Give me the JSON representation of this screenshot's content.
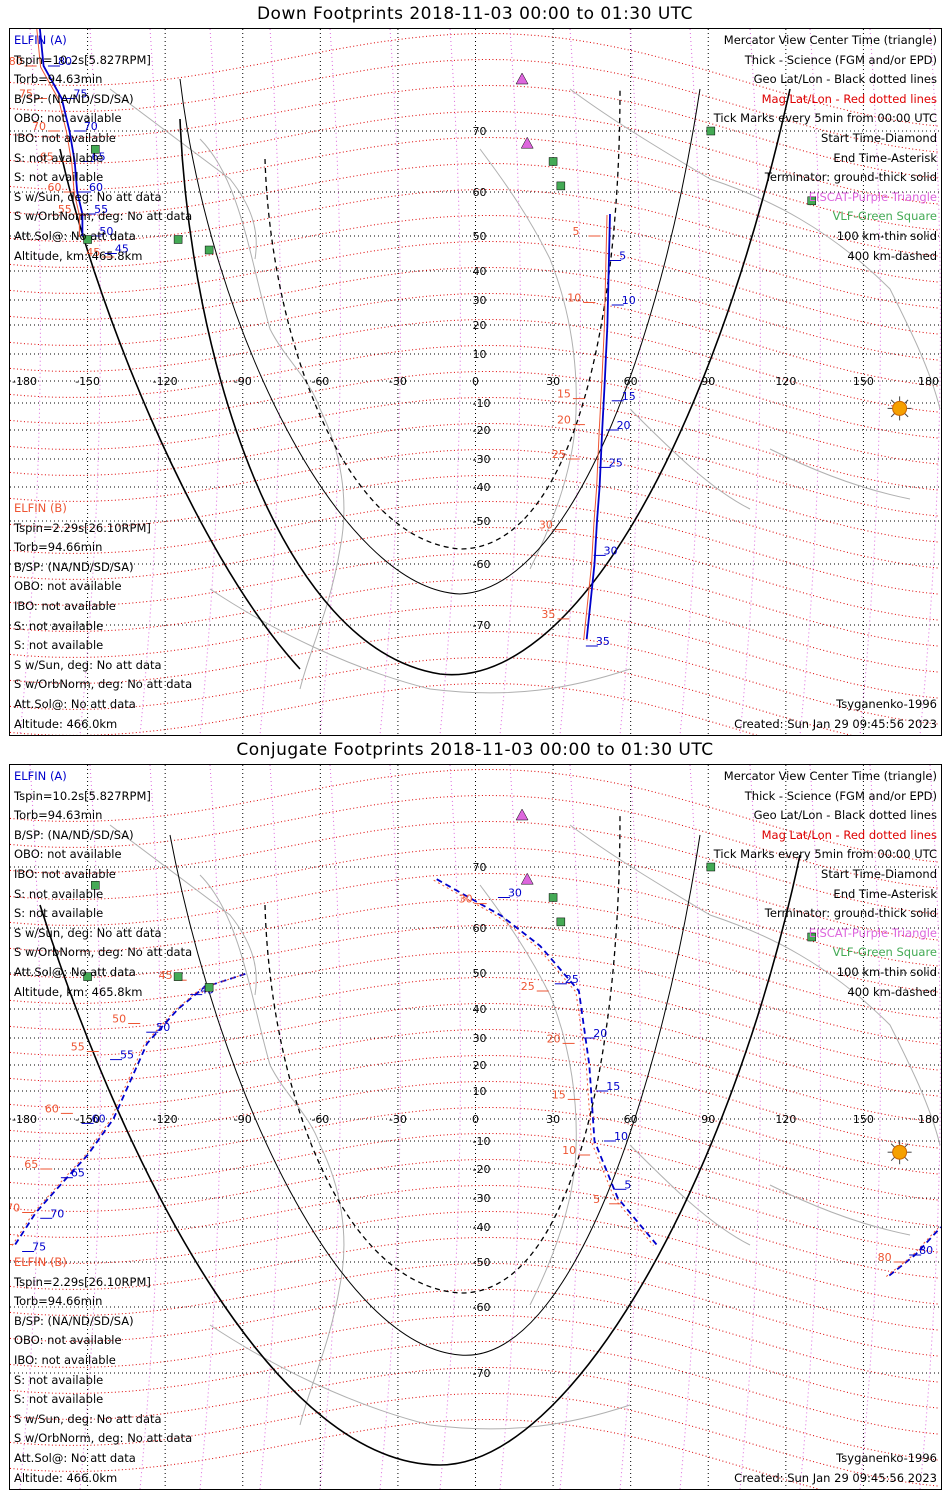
{
  "panels": [
    {
      "title": "Down Footprints 2018-11-03 00:00 to 01:30 UTC",
      "left_info": [
        "ELFIN (A)",
        "Tspin=10.2s[5.827RPM]",
        "Torb=94.63min",
        "B/SP: (NA/ND/SD/SA)",
        "OBO: not available",
        "IBO: not available",
        "S: not available",
        "S: not available",
        "S w/Sun, deg: No att data",
        "S w/OrbNorm, deg: No att data",
        "Att.Sol@: No att data",
        "Altitude, km: 465.8km"
      ],
      "left_info_b": [
        "ELFIN (B)",
        "Tspin=2.29s[26.10RPM]",
        "Torb=94.66min",
        "B/SP: (NA/ND/SD/SA)",
        "OBO: not available",
        "IBO: not available",
        "S: not available",
        "S: not available",
        "S w/Sun, deg: No att data",
        "S w/OrbNorm, deg: No att data",
        "Att.Sol@: No att data",
        "Altitude: 466.0km"
      ],
      "model": "Tsyganenko-1996",
      "created": "Created: Sun Jan 29 09:45:56 2023"
    },
    {
      "title": "Conjugate Footprints 2018-11-03 00:00 to 01:30 UTC",
      "left_info": [
        "ELFIN (A)",
        "Tspin=10.2s[5.827RPM]",
        "Torb=94.63min",
        "B/SP: (NA/ND/SD/SA)",
        "OBO: not available",
        "IBO: not available",
        "S: not available",
        "S: not available",
        "S w/Sun, deg: No att data",
        "S w/OrbNorm, deg: No att data",
        "Att.Sol@: No att data",
        "Altitude, km: 465.8km"
      ],
      "left_info_b": [
        "ELFIN (B)",
        "Tspin=2.29s[26.10RPM]",
        "Torb=94.66min",
        "B/SP: (NA/ND/SD/SA)",
        "OBO: not available",
        "IBO: not available",
        "S: not available",
        "S: not available",
        "S w/Sun, deg: No att data",
        "S w/OrbNorm, deg: No att data",
        "Att.Sol@: No att data",
        "Altitude: 466.0km"
      ],
      "model": "Tsyganenko-1996",
      "created": "Created: Sun Jan 29 09:45:56 2023"
    }
  ],
  "legend": [
    {
      "text": "Mercator View Center Time (triangle)",
      "color": "#000000"
    },
    {
      "text": "Thick - Science (FGM and/or EPD)",
      "color": "#000000"
    },
    {
      "text": "Geo Lat/Lon - Black dotted lines",
      "color": "#000000"
    },
    {
      "text": "Mag Lat/Lon - Red dotted lines",
      "color": "#dd0000"
    },
    {
      "text": "Tick Marks every 5min from 00:00 UTC",
      "color": "#000000"
    },
    {
      "text": "Start Time-Diamond",
      "color": "#000000"
    },
    {
      "text": "End Time-Asterisk",
      "color": "#000000"
    },
    {
      "text": "Terminator: ground-thick solid",
      "color": "#000000"
    },
    {
      "text": "EISCAT-Purple Triangle",
      "color": "#dd66dd"
    },
    {
      "text": "VLF-Green Square",
      "color": "#44aa55"
    },
    {
      "text": "100 km-thin solid",
      "color": "#000000"
    },
    {
      "text": "400 km-dashed",
      "color": "#000000"
    }
  ],
  "lon_labels": [
    "-180",
    "-150",
    "-120",
    "-90",
    "-60",
    "-30",
    "0",
    "30",
    "60",
    "90",
    "120",
    "150",
    "180"
  ],
  "lat_labels": [
    "70",
    "60",
    "50",
    "40",
    "30",
    "20",
    "10",
    "-10",
    "-20",
    "-30",
    "-40",
    "-50",
    "-60",
    "-70"
  ],
  "colors": {
    "elfin_a": "#0000cc",
    "elfin_b": "#ee5533",
    "mag_grid": "#dd0000",
    "eiscat": "#dd66dd",
    "vlf": "#44aa55",
    "sun": "#f5a000"
  },
  "chart_data": [
    {
      "type": "map",
      "title": "Down Footprints 2018-11-03 00:00 to 01:30 UTC",
      "xlim": [
        -180,
        180
      ],
      "xlabel": "",
      "ylabel": "",
      "elfin_a_tracks": [
        {
          "lon": [
            -169,
            -167,
            -160,
            -157,
            -155,
            -154,
            -152,
            -152
          ],
          "lat": [
            88,
            80,
            75,
            70,
            65,
            60,
            55,
            50
          ]
        },
        {
          "lon": [
            43,
            46,
            47,
            48,
            49,
            50,
            51,
            52
          ],
          "lat": [
            -72,
            -60,
            -50,
            -40,
            -20,
            0,
            20,
            55
          ]
        }
      ],
      "elfin_a_ticks": [
        {
          "text": "80",
          "lon": -163,
          "lat": 80
        },
        {
          "text": "75",
          "lon": -157,
          "lat": 75
        },
        {
          "text": "70",
          "lon": -153,
          "lat": 70
        },
        {
          "text": "65",
          "lon": -150,
          "lat": 65
        },
        {
          "text": "60",
          "lon": -151,
          "lat": 60
        },
        {
          "text": "55",
          "lon": -149,
          "lat": 55
        },
        {
          "text": "50",
          "lon": -147,
          "lat": 50
        },
        {
          "text": "45",
          "lon": -141,
          "lat": 45
        },
        {
          "text": "5",
          "lon": 54,
          "lat": 43
        },
        {
          "text": "10",
          "lon": 55,
          "lat": 28
        },
        {
          "text": "15",
          "lon": 55,
          "lat": -9
        },
        {
          "text": "20",
          "lon": 53,
          "lat": -20
        },
        {
          "text": "25",
          "lon": 50,
          "lat": -33
        },
        {
          "text": "30",
          "lon": 48,
          "lat": -58
        },
        {
          "text": "35",
          "lon": 45,
          "lat": -73
        }
      ],
      "elfin_b_ticks": [
        {
          "text": "80",
          "lon": -172,
          "lat": 80
        },
        {
          "text": "75",
          "lon": -168,
          "lat": 75
        },
        {
          "text": "70",
          "lon": -163,
          "lat": 70
        },
        {
          "text": "65",
          "lon": -160,
          "lat": 65
        },
        {
          "text": "60",
          "lon": -157,
          "lat": 60
        },
        {
          "text": "55",
          "lon": -153,
          "lat": 55
        },
        {
          "text": "45",
          "lon": -142,
          "lat": 44
        },
        {
          "text": "5",
          "lon": 46,
          "lat": 50
        },
        {
          "text": "10",
          "lon": 44,
          "lat": 29
        },
        {
          "text": "15",
          "lon": 40,
          "lat": -8
        },
        {
          "text": "20",
          "lon": 40,
          "lat": -18
        },
        {
          "text": "25",
          "lon": 38,
          "lat": -30
        },
        {
          "text": "30",
          "lon": 33,
          "lat": -52
        },
        {
          "text": "35",
          "lon": 34,
          "lat": -69
        }
      ]
    },
    {
      "type": "map",
      "title": "Conjugate Footprints 2018-11-03 00:00 to 01:30 UTC",
      "xlim": [
        -180,
        180
      ],
      "xlabel": "",
      "ylabel": "",
      "elfin_a_tracks": [
        {
          "lon": [
            -178,
            -170,
            -160,
            -150,
            -140,
            -127,
            -115,
            -105,
            -88
          ],
          "lat": [
            -45,
            -35,
            -25,
            -15,
            0,
            28,
            40,
            46,
            50
          ]
        },
        {
          "lon": [
            -15,
            10,
            25,
            40,
            44,
            46,
            55,
            70
          ],
          "lat": [
            68,
            62,
            56,
            45,
            20,
            -10,
            -30,
            -45
          ]
        },
        {
          "lon": [
            160,
            170,
            180
          ],
          "lat": [
            -53,
            -48,
            -40
          ]
        }
      ],
      "elfin_a_ticks": [
        {
          "text": "30",
          "lon": 11,
          "lat": 65
        },
        {
          "text": "25",
          "lon": 33,
          "lat": 47
        },
        {
          "text": "20",
          "lon": 44,
          "lat": 30
        },
        {
          "text": "15",
          "lon": 49,
          "lat": 10
        },
        {
          "text": "10",
          "lon": 52,
          "lat": -10
        },
        {
          "text": "5",
          "lon": 56,
          "lat": -27
        },
        {
          "text": "80",
          "lon": 170,
          "lat": -48
        },
        {
          "text": "75",
          "lon": -173,
          "lat": -47
        },
        {
          "text": "70",
          "lon": -166,
          "lat": -37
        },
        {
          "text": "65",
          "lon": -158,
          "lat": -23
        },
        {
          "text": "60",
          "lon": -150,
          "lat": -2
        },
        {
          "text": "55",
          "lon": -139,
          "lat": 22
        },
        {
          "text": "50",
          "lon": -125,
          "lat": 32
        },
        {
          "text": "45",
          "lon": -108,
          "lat": 44
        }
      ],
      "elfin_b_ticks": [
        {
          "text": "30",
          "lon": 2,
          "lat": 64
        },
        {
          "text": "25",
          "lon": 26,
          "lat": 45
        },
        {
          "text": "20",
          "lon": 36,
          "lat": 28
        },
        {
          "text": "15",
          "lon": 38,
          "lat": 7
        },
        {
          "text": "10",
          "lon": 42,
          "lat": -15
        },
        {
          "text": "5",
          "lon": 54,
          "lat": -32
        },
        {
          "text": "80",
          "lon": 164,
          "lat": -50
        },
        {
          "text": "75",
          "lon": -181,
          "lat": -45
        },
        {
          "text": "70",
          "lon": -173,
          "lat": -35
        },
        {
          "text": "65",
          "lon": -166,
          "lat": -20
        },
        {
          "text": "60",
          "lon": -158,
          "lat": 2
        },
        {
          "text": "55",
          "lon": -148,
          "lat": 25
        },
        {
          "text": "50",
          "lon": -132,
          "lat": 35
        },
        {
          "text": "45",
          "lon": -114,
          "lat": 48
        }
      ]
    }
  ]
}
